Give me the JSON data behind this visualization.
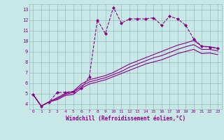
{
  "xlabel": "Windchill (Refroidissement éolien,°C)",
  "bg_color": "#c8e8e8",
  "line_color": "#880088",
  "grid_color": "#99bbbb",
  "xlim": [
    -0.5,
    23.5
  ],
  "ylim": [
    3.5,
    13.5
  ],
  "xticks": [
    0,
    1,
    2,
    3,
    4,
    5,
    6,
    7,
    8,
    9,
    10,
    11,
    12,
    13,
    14,
    15,
    16,
    17,
    18,
    19,
    20,
    21,
    22,
    23
  ],
  "yticks": [
    4,
    5,
    6,
    7,
    8,
    9,
    10,
    11,
    12,
    13
  ],
  "line1_x": [
    0,
    1,
    2,
    3,
    4,
    5,
    6,
    7,
    8,
    9,
    10,
    11,
    12,
    13,
    14,
    15,
    16,
    17,
    18,
    19,
    20,
    21,
    22,
    23
  ],
  "line1_y": [
    4.9,
    3.8,
    4.2,
    5.1,
    5.1,
    5.2,
    5.5,
    6.6,
    12.0,
    10.7,
    13.2,
    11.7,
    12.1,
    12.1,
    12.1,
    12.2,
    11.5,
    12.35,
    12.1,
    11.5,
    10.2,
    9.5,
    9.4,
    9.3
  ],
  "line2_x": [
    0,
    1,
    2,
    3,
    4,
    5,
    6,
    7,
    8,
    9,
    10,
    11,
    12,
    13,
    14,
    15,
    16,
    17,
    18,
    19,
    20,
    21,
    22,
    23
  ],
  "line2_y": [
    4.9,
    3.8,
    4.2,
    4.6,
    5.0,
    5.2,
    5.9,
    6.3,
    6.5,
    6.7,
    7.0,
    7.4,
    7.8,
    8.1,
    8.4,
    8.7,
    9.0,
    9.3,
    9.6,
    9.8,
    10.05,
    9.5,
    9.45,
    9.3
  ],
  "line3_x": [
    0,
    1,
    2,
    3,
    4,
    5,
    6,
    7,
    8,
    9,
    10,
    11,
    12,
    13,
    14,
    15,
    16,
    17,
    18,
    19,
    20,
    21,
    22,
    23
  ],
  "line3_y": [
    4.9,
    3.8,
    4.2,
    4.5,
    4.9,
    5.1,
    5.7,
    6.1,
    6.3,
    6.5,
    6.8,
    7.1,
    7.5,
    7.8,
    8.1,
    8.4,
    8.6,
    8.9,
    9.2,
    9.45,
    9.65,
    9.2,
    9.2,
    9.05
  ],
  "line4_x": [
    0,
    1,
    2,
    3,
    4,
    5,
    6,
    7,
    8,
    9,
    10,
    11,
    12,
    13,
    14,
    15,
    16,
    17,
    18,
    19,
    20,
    21,
    22,
    23
  ],
  "line4_y": [
    4.9,
    3.8,
    4.2,
    4.4,
    4.8,
    4.9,
    5.5,
    5.9,
    6.1,
    6.3,
    6.6,
    6.9,
    7.2,
    7.5,
    7.8,
    8.0,
    8.2,
    8.5,
    8.8,
    9.0,
    9.2,
    8.8,
    8.85,
    8.7
  ]
}
